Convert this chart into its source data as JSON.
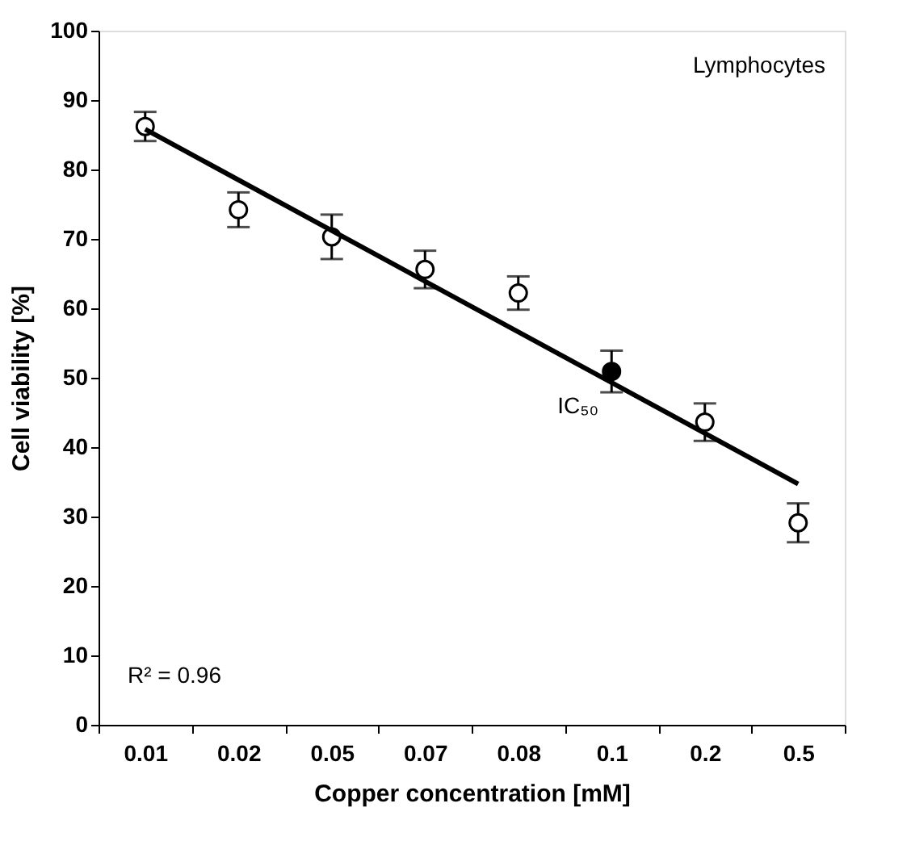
{
  "chart_data": {
    "type": "scatter",
    "xlabel": "Copper concentration [mM]",
    "ylabel": "Cell viability [%]",
    "categories": [
      "0.01",
      "0.02",
      "0.05",
      "0.07",
      "0.08",
      "0.1",
      "0.2",
      "0.5"
    ],
    "series": [
      {
        "type": "scatter",
        "marker": "circle",
        "color": "#000000",
        "colors": [
          "#ffffff",
          "#ffffff",
          "#ffffff",
          "#ffffff",
          "#ffffff",
          "#000000",
          "#ffffff",
          "#ffffff"
        ],
        "values": [
          86.2,
          74.2,
          70.3,
          65.6,
          62.2,
          50.9,
          43.6,
          29.1
        ],
        "errors": [
          2.1,
          2.5,
          3.2,
          2.7,
          2.4,
          3.0,
          2.7,
          2.8
        ]
      },
      {
        "type": "line",
        "marker": "none",
        "color": "#000000",
        "x": [
          "0.01",
          "0.5"
        ],
        "values": [
          85.8,
          34.7
        ]
      }
    ],
    "ylim": [
      0,
      100
    ],
    "yticks": [
      0,
      10,
      20,
      30,
      40,
      50,
      60,
      70,
      80,
      90,
      100
    ],
    "grid": false,
    "line_style": "solid",
    "annotations": [
      "Lymphocytes",
      "R² = 0.96",
      {
        "text": "IC₅₀",
        "x": "0.1",
        "y": 50.9
      }
    ]
  }
}
